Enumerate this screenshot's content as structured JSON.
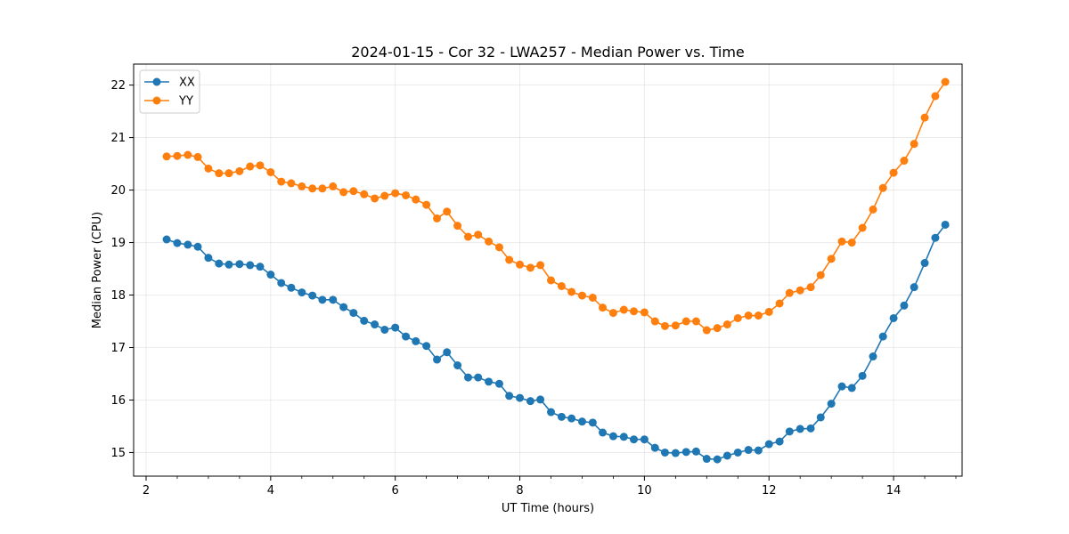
{
  "chart_data": {
    "type": "line",
    "title": "2024-01-15 - Cor 32 - LWA257 - Median Power vs. Time",
    "xlabel": "UT Time (hours)",
    "ylabel": "Median Power (CPU)",
    "xlim": [
      1.8,
      15.1
    ],
    "ylim": [
      14.55,
      22.4
    ],
    "xticks": [
      2,
      4,
      6,
      8,
      10,
      12,
      14
    ],
    "yticks": [
      15,
      16,
      17,
      18,
      19,
      20,
      21,
      22
    ],
    "grid": true,
    "legend_position": "top-left",
    "x": [
      2.33,
      2.5,
      2.67,
      2.83,
      3.0,
      3.17,
      3.33,
      3.5,
      3.67,
      3.83,
      4.0,
      4.17,
      4.33,
      4.5,
      4.67,
      4.83,
      5.0,
      5.17,
      5.33,
      5.5,
      5.67,
      5.83,
      6.0,
      6.17,
      6.33,
      6.5,
      6.67,
      6.83,
      7.0,
      7.17,
      7.33,
      7.5,
      7.67,
      7.83,
      8.0,
      8.17,
      8.33,
      8.5,
      8.67,
      8.83,
      9.0,
      9.17,
      9.33,
      9.5,
      9.67,
      9.83,
      10.0,
      10.17,
      10.33,
      10.5,
      10.67,
      10.83,
      11.0,
      11.17,
      11.33,
      11.5,
      11.67,
      11.83,
      12.0,
      12.17,
      12.33,
      12.5,
      12.67,
      12.83,
      13.0,
      13.17,
      13.33,
      13.5,
      13.67,
      13.83,
      14.0,
      14.17,
      14.33,
      14.5,
      14.67,
      14.83
    ],
    "series": [
      {
        "name": "XX",
        "color": "#1f77b4",
        "values": [
          19.06,
          18.99,
          18.96,
          18.92,
          18.71,
          18.6,
          18.58,
          18.59,
          18.57,
          18.54,
          18.39,
          18.23,
          18.14,
          18.05,
          17.99,
          17.91,
          17.91,
          17.77,
          17.66,
          17.51,
          17.44,
          17.34,
          17.38,
          17.21,
          17.12,
          17.03,
          16.77,
          16.91,
          16.66,
          16.43,
          16.43,
          16.35,
          16.31,
          16.08,
          16.04,
          15.98,
          16.01,
          15.77,
          15.68,
          15.65,
          15.59,
          15.57,
          15.38,
          15.31,
          15.3,
          15.25,
          15.25,
          15.09,
          15.0,
          14.99,
          15.01,
          15.02,
          14.88,
          14.87,
          14.94,
          15.0,
          15.05,
          15.04,
          15.16,
          15.21,
          15.4,
          15.45,
          15.46,
          15.67,
          15.93,
          16.26,
          16.23,
          16.46,
          16.83,
          17.21,
          17.56,
          17.8,
          18.15,
          18.61,
          19.09,
          19.34
        ]
      },
      {
        "name": "YY",
        "color": "#ff7f0e",
        "values": [
          20.64,
          20.65,
          20.67,
          20.63,
          20.41,
          20.32,
          20.32,
          20.36,
          20.45,
          20.47,
          20.34,
          20.16,
          20.13,
          20.07,
          20.03,
          20.03,
          20.07,
          19.96,
          19.98,
          19.92,
          19.84,
          19.89,
          19.94,
          19.9,
          19.82,
          19.72,
          19.46,
          19.59,
          19.32,
          19.11,
          19.15,
          19.02,
          18.91,
          18.67,
          18.58,
          18.52,
          18.57,
          18.28,
          18.17,
          18.06,
          17.99,
          17.95,
          17.76,
          17.66,
          17.72,
          17.69,
          17.67,
          17.5,
          17.41,
          17.42,
          17.5,
          17.5,
          17.33,
          17.37,
          17.44,
          17.56,
          17.61,
          17.61,
          17.68,
          17.84,
          18.04,
          18.09,
          18.15,
          18.38,
          18.69,
          19.02,
          19.0,
          19.28,
          19.63,
          20.04,
          20.33,
          20.56,
          20.88,
          21.38,
          21.79,
          22.06
        ]
      }
    ]
  }
}
